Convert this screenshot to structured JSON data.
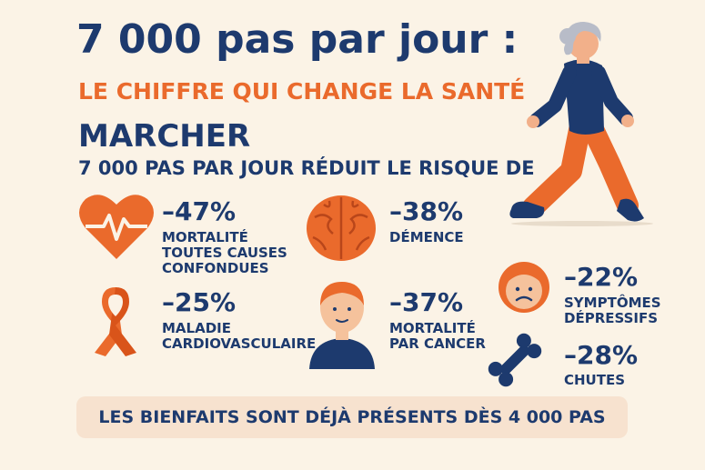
{
  "title": "7 000 pas par jour :",
  "subtitle": "LE CHIFFRE QUI CHANGE LA SANTÉ",
  "section_title": "MARCHER",
  "intro": "7 000 PAS PAR JOUR RÉDUIT LE RISQUE DE",
  "stats": [
    {
      "icon": "heart-icon",
      "value": "–47%",
      "label_lines": [
        "MORTALITÉ",
        "TOUTES CAUSES",
        "CONFONDUES"
      ]
    },
    {
      "icon": "brain-icon",
      "value": "–38%",
      "label_lines": [
        "DÉMENCE"
      ]
    },
    {
      "icon": "sad-face-icon",
      "value": "–22%",
      "label_lines": [
        "SYMPTÔMES",
        "DÉPRESSIFS"
      ]
    },
    {
      "icon": "ribbon-icon",
      "value": "–25%",
      "label_lines": [
        "MALADIE",
        "CARDIOVASCULAIRE"
      ]
    },
    {
      "icon": "person-icon",
      "value": "–37%",
      "label_lines": [
        "MORTALITÉ",
        "PAR CANCER"
      ]
    },
    {
      "icon": "bone-icon",
      "value": "–28%",
      "label_lines": [
        "CHUTES"
      ]
    }
  ],
  "footer": "LES BIENFAITS SONT DÉJÀ PRÉSENTS DÈS 4 000 PAS",
  "colors": {
    "navy": "#1d3a6e",
    "orange": "#ea6a2c",
    "background": "#fbf3e6",
    "footer_bg": "#f7e2cf"
  }
}
